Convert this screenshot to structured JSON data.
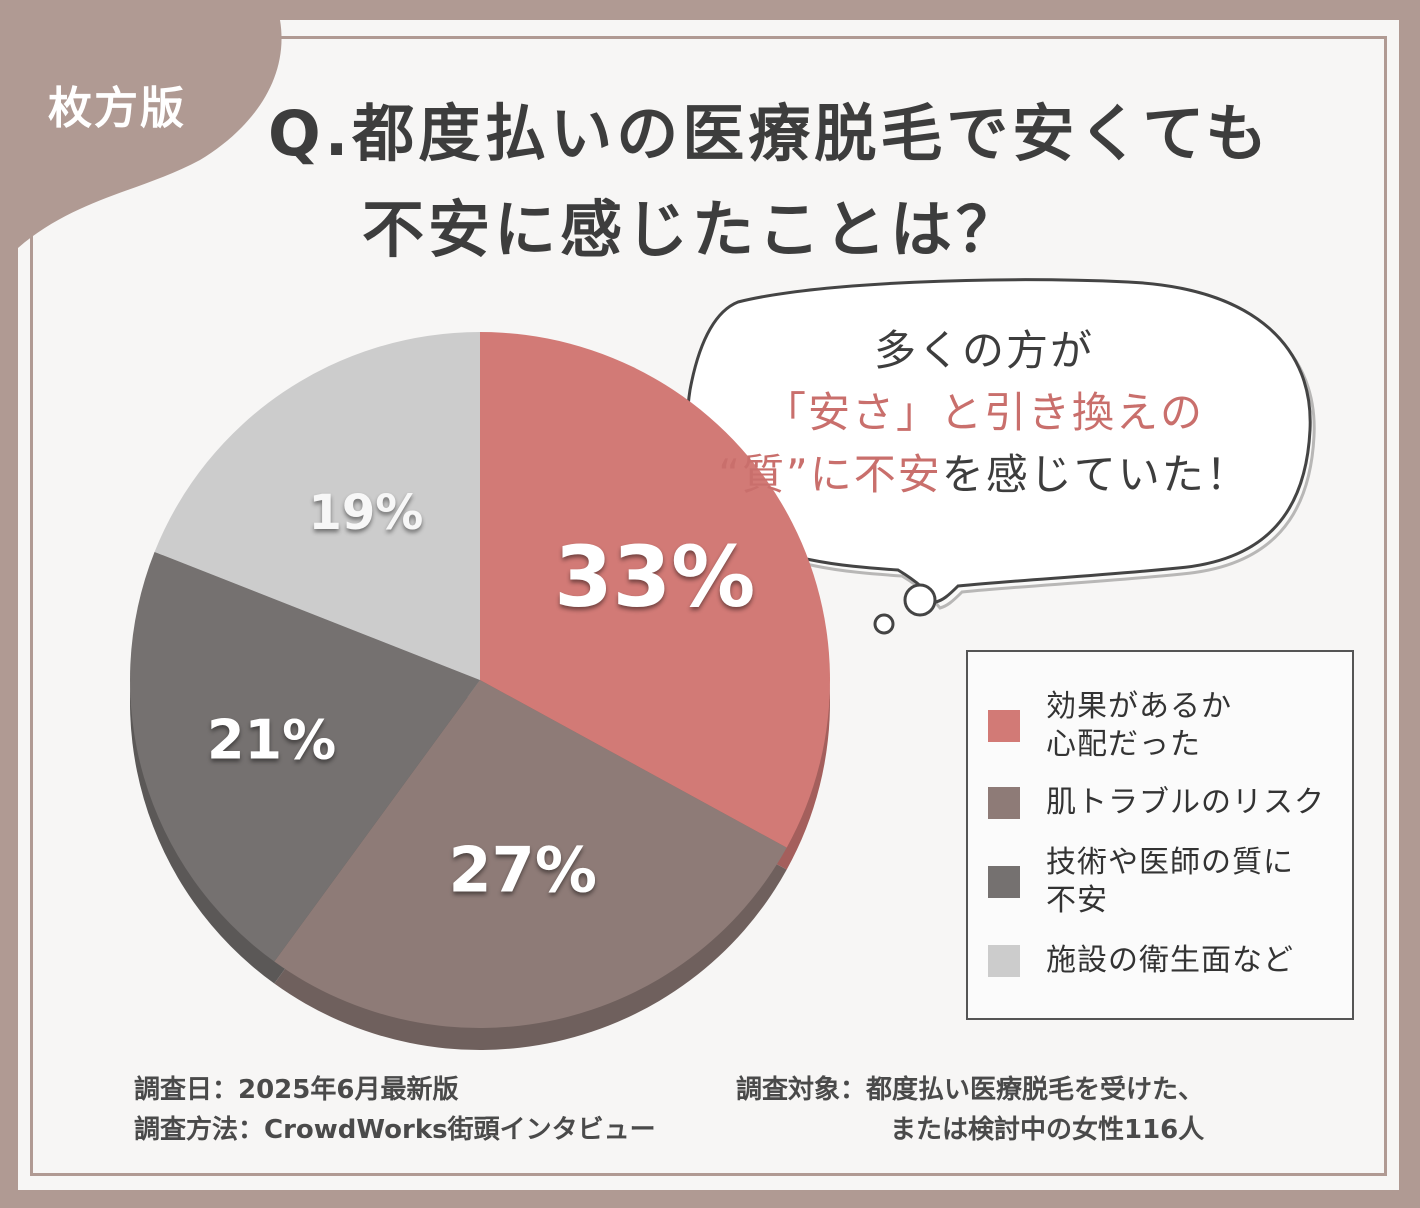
{
  "region_label": "枚方版",
  "title": {
    "line1": "Q.都度払いの医療脱毛で安くても",
    "line2": "不安に感じたことは？"
  },
  "bubble": {
    "line1": "多くの方が",
    "line2": "「安さ」と引き換えの",
    "line3_accent": "“質”に不安",
    "line3_rest": "を感じていた！"
  },
  "chart_data": {
    "type": "pie",
    "title": "Q.都度払いの医療脱毛で安くても不安に感じたことは？",
    "slices": [
      {
        "label": "効果があるか\n心配だった",
        "value": 33,
        "display": "33%",
        "color": "#d27a76"
      },
      {
        "label": "肌トラブルのリスク",
        "value": 27,
        "display": "27%",
        "color": "#8e7b77"
      },
      {
        "label": "技術や医師の質に\n不安",
        "value": 21,
        "display": "21%",
        "color": "#757170"
      },
      {
        "label": "施設の衛生面など",
        "value": 19,
        "display": "19%",
        "color": "#cccccc"
      }
    ],
    "legend_position": "right",
    "start_angle": "12 o'clock",
    "direction": "clockwise"
  },
  "footer": {
    "survey_date": "調査日：2025年6月最新版",
    "survey_method": "調査方法：CrowdWorks街頭インタビュー",
    "survey_target_line1": "調査対象：都度払い医療脱毛を受けた、",
    "survey_target_line2": "または検討中の女性116人"
  }
}
